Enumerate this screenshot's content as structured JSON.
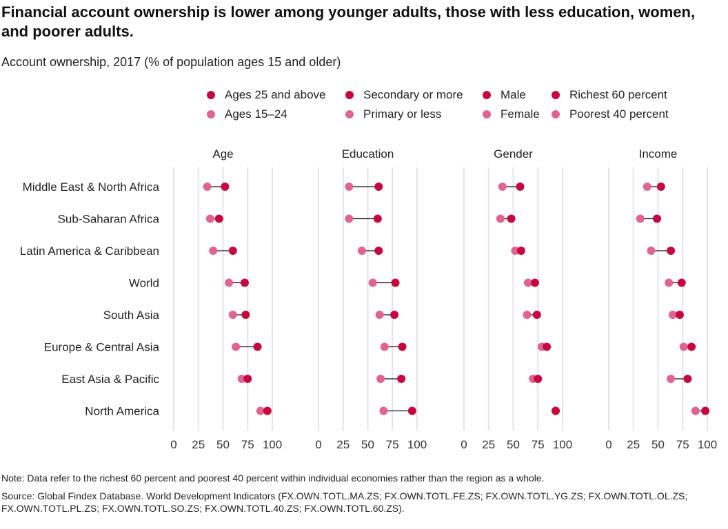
{
  "title": "Financial account ownership is lower among younger adults, those with less education, women, and poorer adults.",
  "subtitle": "Account ownership, 2017 (% of population ages 15 and older)",
  "colors": {
    "high": "#c6073f",
    "low": "#e0648f",
    "grid": "#e4e4e4",
    "connector": "#111111"
  },
  "legend": [
    {
      "label": "Ages 25 and above",
      "type": "high"
    },
    {
      "label": "Ages 15–24",
      "type": "low"
    },
    {
      "label": "Secondary or more",
      "type": "high"
    },
    {
      "label": "Primary or less",
      "type": "low"
    },
    {
      "label": "Male",
      "type": "high"
    },
    {
      "label": "Female",
      "type": "low"
    },
    {
      "label": "Richest 60 percent",
      "type": "high"
    },
    {
      "label": "Poorest 40 percent",
      "type": "low"
    }
  ],
  "chart_data": {
    "type": "dot-plot",
    "categories": [
      "Middle East & North Africa",
      "Sub-Saharan Africa",
      "Latin America & Caribbean",
      "World",
      "South Asia",
      "Europe & Central Asia",
      "East Asia & Pacific",
      "North America"
    ],
    "xlim": [
      0,
      100
    ],
    "xticks": [
      "0",
      "25",
      "50",
      "75",
      "100"
    ],
    "grid": true,
    "panels": [
      {
        "title": "Age",
        "high": [
          52,
          46,
          60,
          72,
          73,
          85,
          75,
          95
        ],
        "low": [
          34,
          37,
          40,
          56,
          60,
          63,
          69,
          88
        ]
      },
      {
        "title": "Education",
        "high": [
          61,
          60,
          61,
          78,
          77,
          85,
          84,
          95
        ],
        "low": [
          31,
          31,
          44,
          55,
          62,
          67,
          63,
          66
        ]
      },
      {
        "title": "Gender",
        "high": [
          57,
          48,
          58,
          72,
          74,
          84,
          75,
          93
        ],
        "low": [
          39,
          37,
          52,
          65,
          64,
          79,
          70,
          93
        ]
      },
      {
        "title": "Income",
        "high": [
          53,
          49,
          63,
          74,
          72,
          84,
          80,
          98
        ],
        "low": [
          39,
          32,
          43,
          61,
          65,
          76,
          63,
          88
        ]
      }
    ]
  },
  "note": "Note: Data refer to the richest 60 percent and poorest 40 percent within individual economies rather than the region as a whole.",
  "source": "Source: Global Findex Database. World Development Indicators (FX.OWN.TOTL.MA.ZS; FX.OWN.TOTL.FE.ZS; FX.OWN.TOTL.YG.ZS; FX.OWN.TOTL.OL.ZS; FX.OWN.TOTL.PL.ZS; FX.OWN.TOTL.SO.ZS; FX.OWN.TOTL.40.ZS; FX.OWN.TOTL.60.ZS)."
}
